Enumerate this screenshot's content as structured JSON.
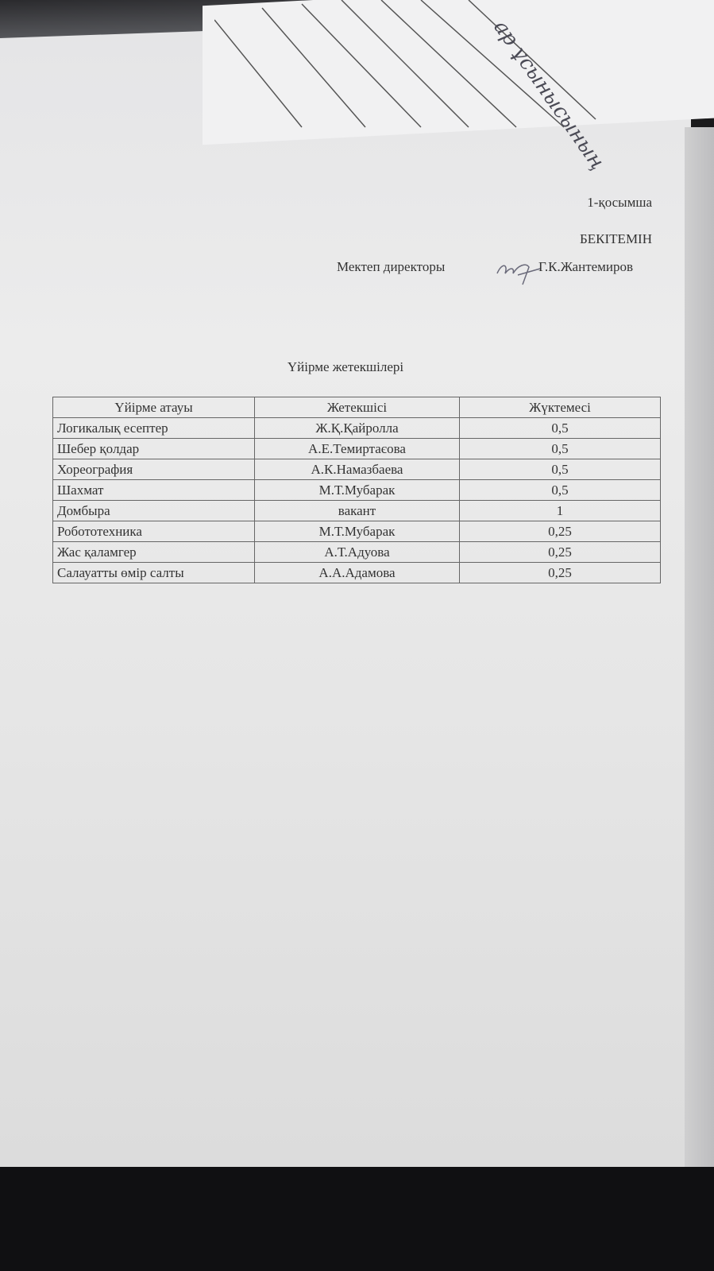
{
  "handwritten_note": "ар ұсынысының",
  "appendix_label": "1-қосымша",
  "approval": {
    "heading": "БЕКІТЕМІН",
    "position": "Мектеп директоры",
    "name": "Г.К.Жантемиров"
  },
  "title": "Үйірме жетекшілері",
  "table": {
    "headers": [
      "Үйірме атауы",
      "Жетекшісі",
      "Жүктемесі"
    ],
    "rows": [
      [
        "Логикалық есептер",
        "Ж.Қ.Қайролла",
        "0,5"
      ],
      [
        "Шебер қолдар",
        "А.Е.Темиртаєова",
        "0,5"
      ],
      [
        "Хореография",
        "А.К.Намазбаева",
        "0,5"
      ],
      [
        "Шахмат",
        "М.Т.Мубарак",
        "0,5"
      ],
      [
        "Домбыра",
        "вакант",
        "1"
      ],
      [
        "Робототехника",
        "М.Т.Мубарак",
        "0,25"
      ],
      [
        "Жас қаламгер",
        "А.Т.Адуова",
        "0,25"
      ],
      [
        "Салауатты өмір салты",
        "А.А.Адамова",
        "0,25"
      ]
    ]
  }
}
